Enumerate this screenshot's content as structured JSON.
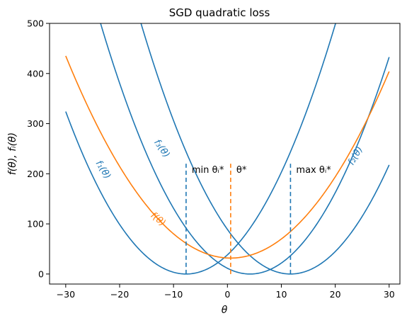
{
  "chart_data": {
    "type": "line",
    "title": "SGD quadratic loss",
    "xlabel": "θ",
    "ylabel": "f(θ), fᵢ(θ)",
    "xlim": [
      -33,
      32
    ],
    "ylim": [
      -20,
      500
    ],
    "xticks": [
      -30,
      -20,
      -10,
      0,
      10,
      20,
      30
    ],
    "yticks": [
      0,
      100,
      200,
      300,
      400,
      500
    ],
    "grid": false,
    "colors": {
      "blue": "#1f77b4",
      "orange": "#ff7f0e"
    },
    "series": [
      {
        "name": "f₁(θ)",
        "color": "#1f77b4",
        "fn": {
          "a": 0.65,
          "c": -7.67
        },
        "label_at": [
          -23.5,
          205
        ],
        "label_rot": 58
      },
      {
        "name": "f₂(θ)",
        "color": "#1f77b4",
        "fn": {
          "a": 0.65,
          "c": 11.7
        },
        "label_at": [
          24.2,
          233
        ],
        "label_rot": -60
      },
      {
        "name": "f₃(θ)",
        "color": "#1f77b4",
        "fn": {
          "a": 0.65,
          "c": 4.2
        },
        "label_at": [
          -12.6,
          247
        ],
        "label_rot": 55
      },
      {
        "name": "f(θ)",
        "color": "#ff7f0e",
        "fn": {
          "a": 0.4307,
          "c": 0.6,
          "d": 31.8
        },
        "label_at": [
          -13.2,
          105
        ],
        "label_rot": 40
      }
    ],
    "annotations": [
      {
        "x": -7.67,
        "y_top": 220,
        "label": "min θᵢ*",
        "color": "#1f77b4"
      },
      {
        "x": 0.6,
        "y_top": 220,
        "label": "θ*",
        "color": "#ff7f0e"
      },
      {
        "x": 11.7,
        "y_top": 220,
        "label": "max θᵢ*",
        "color": "#1f77b4"
      }
    ]
  }
}
